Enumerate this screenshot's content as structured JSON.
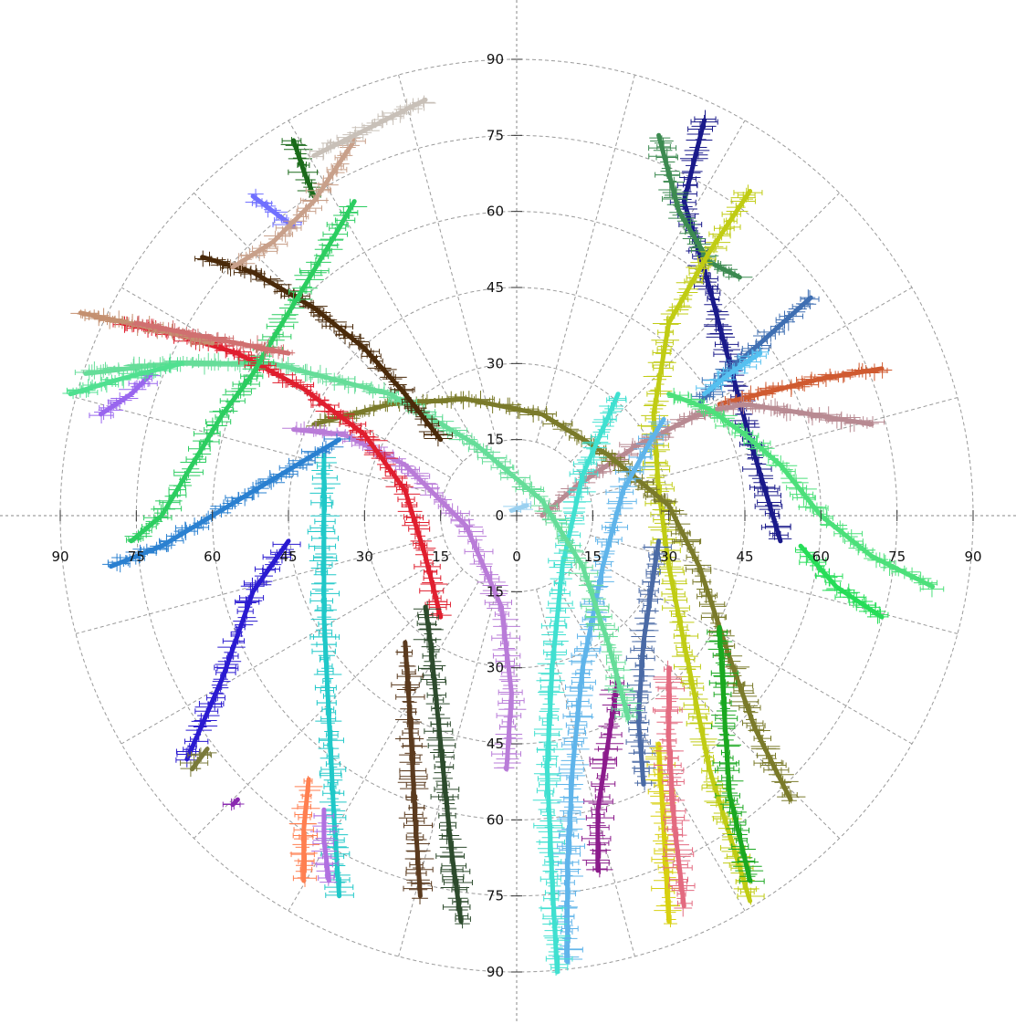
{
  "chart_data": {
    "type": "scatter",
    "subtype": "polar-sky-trails",
    "grid": true,
    "radial_range": [
      0,
      90
    ],
    "ring_values": [
      15,
      30,
      45,
      60,
      75,
      90
    ],
    "spoke_step_deg": 15,
    "x_tick_labels": [
      "90",
      "75",
      "60",
      "45",
      "30",
      "15",
      "0",
      "15",
      "30",
      "45",
      "60",
      "75",
      "90"
    ],
    "y_tick_labels": [
      "90",
      "75",
      "60",
      "45",
      "30",
      "15",
      "0",
      "15",
      "30",
      "45",
      "60",
      "75",
      "90"
    ],
    "center_label": "0",
    "x_ticks": [
      -90,
      -75,
      -60,
      -45,
      -30,
      -15,
      0,
      15,
      30,
      45,
      60,
      75,
      90
    ],
    "y_ticks": [
      90,
      75,
      60,
      45,
      30,
      15,
      0,
      -15,
      -30,
      -45,
      -60,
      -75,
      -90
    ],
    "series": [
      {
        "color": "#1a1a8a",
        "points": [
          [
            37,
            78
          ],
          [
            33,
            62
          ],
          [
            38,
            45
          ],
          [
            42,
            30
          ],
          [
            46,
            15
          ],
          [
            49,
            5
          ],
          [
            52,
            -5
          ]
        ]
      },
      {
        "color": "#3c8a50",
        "points": [
          [
            28,
            75
          ],
          [
            32,
            60
          ],
          [
            38,
            50
          ],
          [
            44,
            47
          ]
        ]
      },
      {
        "color": "#c0cc14",
        "points": [
          [
            46,
            64
          ],
          [
            38,
            52
          ],
          [
            30,
            38
          ],
          [
            27,
            20
          ],
          [
            28,
            5
          ],
          [
            30,
            -10
          ],
          [
            34,
            -30
          ],
          [
            38,
            -50
          ],
          [
            46,
            -76
          ]
        ]
      },
      {
        "color": "#3f6fb2",
        "points": [
          [
            58,
            43
          ],
          [
            48,
            34
          ],
          [
            41,
            28
          ],
          [
            36,
            22
          ]
        ]
      },
      {
        "color": "#55c0f0",
        "points": [
          [
            48,
            32
          ],
          [
            42,
            28
          ],
          [
            37,
            24
          ]
        ]
      },
      {
        "color": "#cf5a30",
        "points": [
          [
            72,
            29
          ],
          [
            60,
            27
          ],
          [
            48,
            24
          ],
          [
            40,
            22
          ]
        ]
      },
      {
        "color": "#b88a92",
        "points": [
          [
            70,
            18
          ],
          [
            58,
            20
          ],
          [
            45,
            22
          ],
          [
            36,
            20
          ],
          [
            24,
            14
          ],
          [
            12,
            6
          ],
          [
            5,
            0
          ]
        ]
      },
      {
        "color": "#4ce07a",
        "points": [
          [
            82,
            -14
          ],
          [
            70,
            -8
          ],
          [
            60,
            0
          ],
          [
            52,
            10
          ],
          [
            45,
            16
          ],
          [
            38,
            21
          ],
          [
            30,
            24
          ]
        ]
      },
      {
        "color": "#26dd58",
        "points": [
          [
            72,
            -20
          ],
          [
            63,
            -14
          ],
          [
            56,
            -6
          ]
        ]
      },
      {
        "color": "#7a7a2a",
        "points": [
          [
            54,
            -56
          ],
          [
            47,
            -42
          ],
          [
            42,
            -28
          ],
          [
            36,
            -10
          ],
          [
            30,
            2
          ],
          [
            18,
            12
          ],
          [
            5,
            20
          ],
          [
            -10,
            23
          ],
          [
            -25,
            22
          ],
          [
            -40,
            18
          ]
        ]
      },
      {
        "color": "#1aa820",
        "points": [
          [
            46,
            -72
          ],
          [
            42,
            -55
          ],
          [
            41,
            -40
          ],
          [
            40,
            -22
          ]
        ]
      },
      {
        "color": "#d8d010",
        "points": [
          [
            30,
            -80
          ],
          [
            29,
            -62
          ],
          [
            28,
            -45
          ]
        ]
      },
      {
        "color": "#e36a80",
        "points": [
          [
            33,
            -77
          ],
          [
            31,
            -60
          ],
          [
            30,
            -44
          ],
          [
            30,
            -30
          ]
        ]
      },
      {
        "color": "#4a6aa5",
        "points": [
          [
            25,
            -53
          ],
          [
            24,
            -40
          ],
          [
            25,
            -25
          ],
          [
            28,
            -5
          ]
        ]
      },
      {
        "color": "#8b1b8b",
        "points": [
          [
            16,
            -70
          ],
          [
            16,
            -58
          ],
          [
            18,
            -45
          ],
          [
            20,
            -32
          ]
        ]
      },
      {
        "color": "#5fb4ea",
        "points": [
          [
            10,
            -88
          ],
          [
            10,
            -70
          ],
          [
            11,
            -50
          ],
          [
            13,
            -30
          ],
          [
            17,
            -10
          ],
          [
            21,
            5
          ],
          [
            26,
            14
          ],
          [
            29,
            19
          ]
        ]
      },
      {
        "color": "#40e0d0",
        "points": [
          [
            8,
            -90
          ],
          [
            7,
            -72
          ],
          [
            6,
            -50
          ],
          [
            7,
            -30
          ],
          [
            9,
            -10
          ],
          [
            13,
            8
          ],
          [
            20,
            24
          ]
        ]
      },
      {
        "color": "#66dd99",
        "points": [
          [
            22,
            -40
          ],
          [
            18,
            -25
          ],
          [
            13,
            -10
          ],
          [
            5,
            3
          ],
          [
            -8,
            14
          ],
          [
            -25,
            24
          ],
          [
            -48,
            30
          ],
          [
            -68,
            30
          ],
          [
            -85,
            28
          ]
        ]
      },
      {
        "color": "#b97cd8",
        "points": [
          [
            -2,
            -50
          ],
          [
            -1,
            -35
          ],
          [
            -3,
            -18
          ],
          [
            -10,
            -2
          ],
          [
            -22,
            10
          ],
          [
            -34,
            16
          ],
          [
            -44,
            17
          ]
        ]
      },
      {
        "color": "#e01e2e",
        "points": [
          [
            -15,
            -20
          ],
          [
            -18,
            -8
          ],
          [
            -22,
            5
          ],
          [
            -30,
            16
          ],
          [
            -42,
            25
          ],
          [
            -55,
            32
          ],
          [
            -68,
            36
          ],
          [
            -78,
            38
          ]
        ]
      },
      {
        "color": "#4a2a0a",
        "points": [
          [
            -15,
            15
          ],
          [
            -22,
            24
          ],
          [
            -30,
            33
          ],
          [
            -40,
            41
          ],
          [
            -52,
            48
          ],
          [
            -62,
            51
          ]
        ]
      },
      {
        "color": "#2c4a2c",
        "points": [
          [
            -11,
            -80
          ],
          [
            -13,
            -65
          ],
          [
            -15,
            -45
          ],
          [
            -17,
            -25
          ],
          [
            -18,
            -18
          ]
        ]
      },
      {
        "color": "#5a3a1e",
        "points": [
          [
            -19,
            -75
          ],
          [
            -20,
            -60
          ],
          [
            -21,
            -40
          ],
          [
            -22,
            -25
          ]
        ]
      },
      {
        "color": "#20c8c8",
        "points": [
          [
            -35,
            -75
          ],
          [
            -36,
            -60
          ],
          [
            -37,
            -40
          ],
          [
            -38,
            -20
          ],
          [
            -38,
            0
          ],
          [
            -38,
            12
          ]
        ]
      },
      {
        "color": "#b070e0",
        "points": [
          [
            -37,
            -72
          ],
          [
            -38,
            -64
          ],
          [
            -38,
            -58
          ]
        ]
      },
      {
        "color": "#ff7f50",
        "points": [
          [
            -42,
            -72
          ],
          [
            -42,
            -62
          ],
          [
            -41,
            -52
          ]
        ]
      },
      {
        "color": "#2a1ad0",
        "points": [
          [
            -65,
            -48
          ],
          [
            -58,
            -32
          ],
          [
            -52,
            -15
          ],
          [
            -45,
            -5
          ]
        ]
      },
      {
        "color": "#7a7a3a",
        "points": [
          [
            -64,
            -50
          ],
          [
            -61,
            -46
          ]
        ]
      },
      {
        "color": "#8a2ab0",
        "points": [
          [
            -56,
            -57
          ],
          [
            -55,
            -56
          ]
        ]
      },
      {
        "color": "#2a80d0",
        "points": [
          [
            -80,
            -10
          ],
          [
            -70,
            -6
          ],
          [
            -60,
            0
          ],
          [
            -50,
            6
          ],
          [
            -40,
            12
          ],
          [
            -35,
            15
          ]
        ]
      },
      {
        "color": "#2ccd60",
        "points": [
          [
            -76,
            -5
          ],
          [
            -70,
            0
          ],
          [
            -64,
            10
          ],
          [
            -58,
            20
          ],
          [
            -52,
            28
          ],
          [
            -48,
            35
          ],
          [
            -42,
            45
          ],
          [
            -36,
            55
          ],
          [
            -32,
            62
          ]
        ]
      },
      {
        "color": "#9966ee",
        "points": [
          [
            -82,
            20
          ],
          [
            -76,
            24
          ],
          [
            -72,
            28
          ]
        ]
      },
      {
        "color": "#50e090",
        "points": [
          [
            -88,
            24
          ],
          [
            -78,
            27
          ],
          [
            -66,
            30
          ]
        ]
      },
      {
        "color": "#c49070",
        "points": [
          [
            -86,
            40
          ],
          [
            -72,
            37
          ],
          [
            -60,
            34
          ]
        ]
      },
      {
        "color": "#1a6a1a",
        "points": [
          [
            -44,
            74
          ],
          [
            -42,
            68
          ],
          [
            -40,
            63
          ]
        ]
      },
      {
        "color": "#7070ff",
        "points": [
          [
            -52,
            63
          ],
          [
            -48,
            60
          ],
          [
            -44,
            57
          ]
        ]
      },
      {
        "color": "#c8a08a",
        "points": [
          [
            -32,
            74
          ],
          [
            -40,
            62
          ],
          [
            -48,
            54
          ],
          [
            -56,
            49
          ]
        ]
      },
      {
        "color": "#c8c0b8",
        "points": [
          [
            -18,
            82
          ],
          [
            -26,
            78
          ],
          [
            -34,
            74
          ],
          [
            -40,
            71
          ]
        ]
      },
      {
        "color": "#d07070",
        "points": [
          [
            -75,
            38
          ],
          [
            -60,
            35
          ],
          [
            -45,
            32
          ]
        ]
      },
      {
        "color": "#9ad0f0",
        "points": [
          [
            2,
            2
          ],
          [
            -1,
            1
          ]
        ]
      }
    ]
  }
}
